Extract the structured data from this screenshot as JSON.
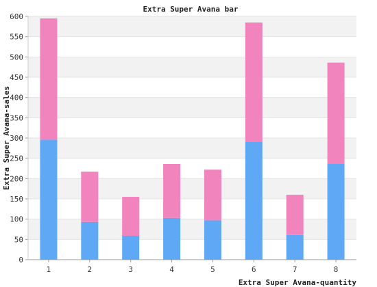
{
  "chart_data": {
    "type": "bar",
    "stacked": true,
    "title": "Extra Super Avana bar",
    "xlabel": "Extra Super Avana-quantity",
    "ylabel": "Extra Super Avana-sales",
    "categories": [
      "1",
      "2",
      "3",
      "4",
      "5",
      "6",
      "7",
      "8"
    ],
    "ylim": [
      0,
      600
    ],
    "yticks": [
      0,
      50,
      100,
      150,
      200,
      250,
      300,
      350,
      400,
      450,
      500,
      550,
      600
    ],
    "grid": "horizontal alternating bands",
    "series": [
      {
        "values": [
          296,
          93,
          59,
          103,
          97,
          291,
          61,
          237
        ],
        "color": "#5fa8f5"
      },
      {
        "values": [
          299,
          124,
          96,
          133,
          125,
          294,
          99,
          249
        ],
        "color": "#f284bd"
      }
    ]
  }
}
